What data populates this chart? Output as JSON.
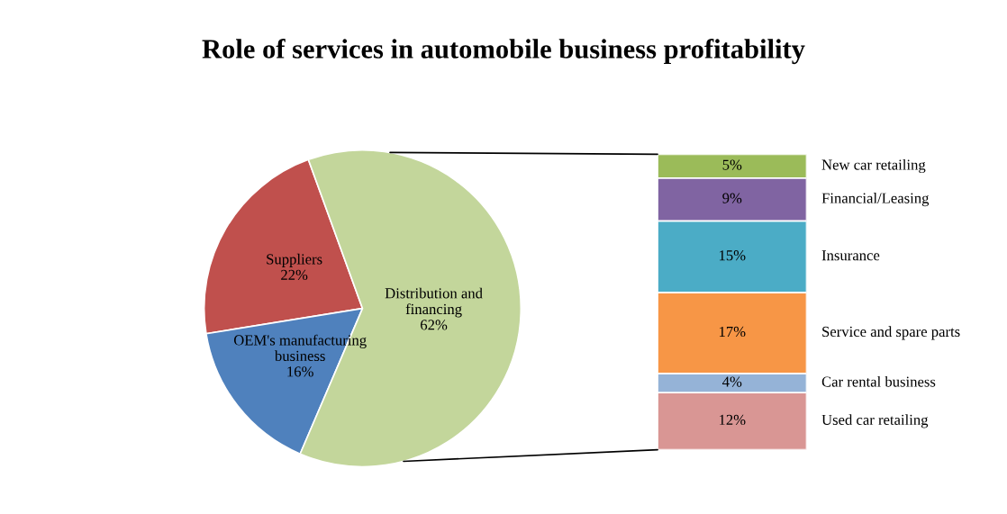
{
  "chart_data": [
    {
      "type": "pie",
      "title": "Role of services in automobile business profitability",
      "categories": [
        "Suppliers",
        "OEM's manufacturing\nbusiness",
        "Distribution and\nfinancing"
      ],
      "values": [
        22,
        16,
        62
      ],
      "value_labels": [
        "22%",
        "16%",
        "62%"
      ],
      "colors": [
        "#c0504d",
        "#4f81bd",
        "#c3d69b"
      ],
      "legend": false
    },
    {
      "type": "bar",
      "stacked": true,
      "categories": [
        null
      ],
      "legend": false,
      "series": [
        {
          "name": "Used car retailing",
          "color": "#d99694",
          "values": [
            12
          ],
          "value_labels": [
            "12%"
          ]
        },
        {
          "name": "Car rental business",
          "color": "#95b3d7",
          "values": [
            4
          ],
          "value_labels": [
            "4%"
          ]
        },
        {
          "name": "Service and spare parts",
          "color": "#f79646",
          "values": [
            17
          ],
          "value_labels": [
            "17%"
          ]
        },
        {
          "name": "Insurance",
          "color": "#4bacc6",
          "values": [
            15
          ],
          "value_labels": [
            "15%"
          ]
        },
        {
          "name": "Financial/Leasing",
          "color": "#8064a2",
          "values": [
            9
          ],
          "value_labels": [
            "9%"
          ]
        },
        {
          "name": "New car retailing",
          "color": "#9bbb59",
          "values": [
            5
          ],
          "value_labels": [
            "5%"
          ]
        }
      ]
    }
  ]
}
